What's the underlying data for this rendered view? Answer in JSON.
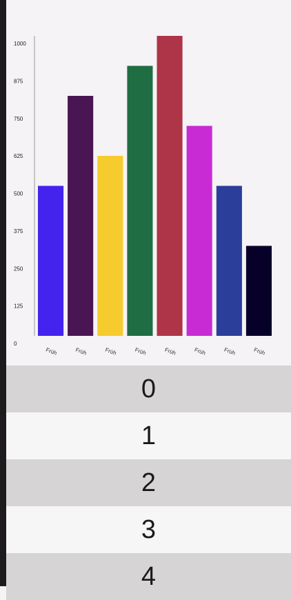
{
  "chart_data": {
    "type": "bar",
    "categories": [
      "Früh",
      "Früh",
      "Früh",
      "Früh",
      "Früh",
      "Früh",
      "Früh",
      "Früh"
    ],
    "values": [
      500,
      800,
      600,
      900,
      1000,
      700,
      500,
      300
    ],
    "colors": [
      "#4423ee",
      "#4a1553",
      "#f6cb2d",
      "#1f6d42",
      "#ae3447",
      "#c82bd4",
      "#2a3e9a",
      "#070129"
    ],
    "yticks": [
      0,
      125,
      250,
      375,
      500,
      625,
      750,
      875,
      1000
    ],
    "ytick_labels": [
      "0",
      "125",
      "250",
      "375",
      "500",
      "625",
      "750",
      "875",
      "1000"
    ],
    "ylim": [
      0,
      1000
    ],
    "title": "",
    "xlabel": "",
    "ylabel": ""
  },
  "list": {
    "items": [
      "0",
      "1",
      "2",
      "3",
      "4"
    ]
  }
}
